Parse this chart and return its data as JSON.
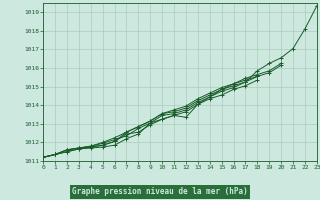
{
  "title": "Graphe pression niveau de la mer (hPa)",
  "background_color": "#cce8df",
  "grid_color": "#aaccbb",
  "line_color": "#1a5c2a",
  "label_bg_color": "#2a6e3a",
  "label_text_color": "#cce8df",
  "yticks": [
    1011,
    1012,
    1013,
    1014,
    1015,
    1016,
    1017,
    1018,
    1019
  ],
  "xticks": [
    0,
    1,
    2,
    3,
    4,
    5,
    6,
    7,
    8,
    9,
    10,
    11,
    12,
    13,
    14,
    15,
    16,
    17,
    18,
    19,
    20,
    21,
    22,
    23
  ],
  "xlim": [
    0,
    23
  ],
  "ylim": [
    1011.0,
    1019.5
  ],
  "series": [
    [
      1011.2,
      1011.35,
      1011.5,
      1011.65,
      1011.7,
      1011.75,
      1011.85,
      1012.2,
      1012.45,
      1013.05,
      1013.25,
      1013.45,
      1013.35,
      1014.05,
      1014.45,
      1014.85,
      1015.05,
      1015.25,
      1015.85,
      1016.25,
      1016.55,
      1017.05,
      1018.1,
      1019.35
    ],
    [
      1011.2,
      1011.35,
      1011.6,
      1011.7,
      1011.75,
      1011.85,
      1012.05,
      1012.55,
      1012.85,
      1013.15,
      1013.55,
      1013.65,
      1013.85,
      1014.25,
      1014.55,
      1014.85,
      1015.15,
      1015.45,
      1015.65,
      1015.85,
      1016.25,
      null,
      null,
      null
    ],
    [
      1011.2,
      1011.35,
      1011.6,
      1011.7,
      1011.8,
      1011.95,
      1012.15,
      1012.35,
      1012.75,
      1013.05,
      1013.45,
      1013.55,
      1013.75,
      1014.15,
      1014.45,
      1014.75,
      1014.95,
      1015.25,
      1015.55,
      1015.75,
      1016.15,
      null,
      null,
      null
    ],
    [
      1011.2,
      1011.35,
      1011.6,
      1011.7,
      1011.8,
      1012.0,
      1012.25,
      1012.55,
      1012.85,
      1013.15,
      1013.55,
      1013.75,
      1013.95,
      1014.35,
      1014.65,
      1014.95,
      1015.15,
      1015.35,
      1015.55,
      null,
      null,
      null,
      null,
      null
    ],
    [
      1011.2,
      1011.35,
      1011.5,
      1011.65,
      1011.75,
      1011.85,
      1012.05,
      1012.45,
      1012.55,
      1012.95,
      1013.25,
      1013.45,
      1013.65,
      1014.05,
      1014.35,
      1014.55,
      1014.85,
      1015.05,
      1015.35,
      null,
      null,
      null,
      null,
      null
    ]
  ]
}
